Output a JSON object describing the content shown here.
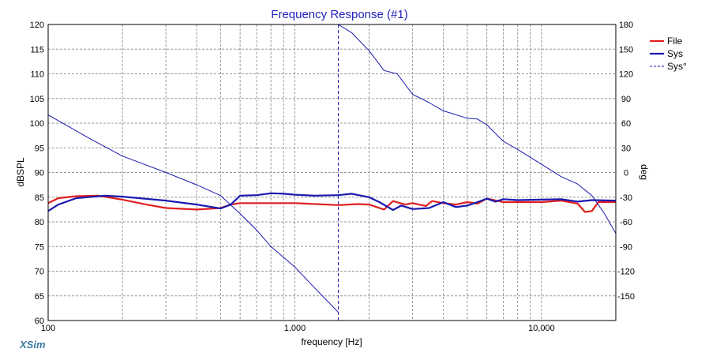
{
  "chart_data": {
    "type": "line",
    "title": "Frequency Response (#1)",
    "xlabel": "frequency [Hz]",
    "ylabel_left": "dBSPL",
    "ylabel_right": "deg",
    "x_scale": "log",
    "xlim": [
      100,
      20000
    ],
    "ylim_left": [
      60,
      120
    ],
    "ylim_right": [
      -180,
      180
    ],
    "grid": true,
    "legend_position": "top-right",
    "x_tick_labels": [
      {
        "value": 100,
        "label": "100"
      },
      {
        "value": 1000,
        "label": "1,000"
      },
      {
        "value": 10000,
        "label": "10,000"
      }
    ],
    "y_left_ticks": [
      60,
      65,
      70,
      75,
      80,
      85,
      90,
      95,
      100,
      105,
      110,
      115,
      120
    ],
    "y_right_ticks": [
      180,
      150,
      120,
      90,
      60,
      30,
      0,
      -30,
      -60,
      -90,
      -120,
      -150
    ],
    "series": [
      {
        "name": "File",
        "axis": "left",
        "color": "#e02020",
        "style": "solid",
        "points": [
          [
            100,
            83.8
          ],
          [
            110,
            84.8
          ],
          [
            130,
            85.2
          ],
          [
            160,
            85.3
          ],
          [
            200,
            84.5
          ],
          [
            250,
            83.5
          ],
          [
            300,
            82.8
          ],
          [
            400,
            82.5
          ],
          [
            500,
            82.8
          ],
          [
            550,
            83.5
          ],
          [
            600,
            83.8
          ],
          [
            1000,
            83.8
          ],
          [
            1500,
            83.4
          ],
          [
            1800,
            83.6
          ],
          [
            2000,
            83.5
          ],
          [
            2300,
            82.5
          ],
          [
            2500,
            84.2
          ],
          [
            2800,
            83.5
          ],
          [
            3000,
            83.8
          ],
          [
            3400,
            83.2
          ],
          [
            3600,
            84.2
          ],
          [
            4000,
            83.8
          ],
          [
            4500,
            83.5
          ],
          [
            5000,
            84
          ],
          [
            5500,
            83.7
          ],
          [
            6000,
            84.7
          ],
          [
            7000,
            84
          ],
          [
            10000,
            84
          ],
          [
            12000,
            84.3
          ],
          [
            14000,
            83.7
          ],
          [
            15000,
            82
          ],
          [
            16000,
            82.2
          ],
          [
            17000,
            84
          ],
          [
            20000,
            84
          ]
        ]
      },
      {
        "name": "Sys",
        "axis": "left",
        "color": "#1a1ab0",
        "style": "solid",
        "points": [
          [
            100,
            82.2
          ],
          [
            110,
            83.5
          ],
          [
            130,
            84.8
          ],
          [
            170,
            85.3
          ],
          [
            200,
            85.1
          ],
          [
            300,
            84.3
          ],
          [
            400,
            83.5
          ],
          [
            500,
            82.7
          ],
          [
            550,
            83.5
          ],
          [
            600,
            85.3
          ],
          [
            700,
            85.4
          ],
          [
            800,
            85.8
          ],
          [
            900,
            85.7
          ],
          [
            1000,
            85.5
          ],
          [
            1200,
            85.3
          ],
          [
            1500,
            85.4
          ],
          [
            1700,
            85.7
          ],
          [
            2000,
            85
          ],
          [
            2200,
            84
          ],
          [
            2500,
            82.4
          ],
          [
            2700,
            83.3
          ],
          [
            3000,
            82.6
          ],
          [
            3500,
            82.8
          ],
          [
            4000,
            84
          ],
          [
            4500,
            83
          ],
          [
            5000,
            83.3
          ],
          [
            5500,
            84
          ],
          [
            6000,
            84.7
          ],
          [
            6500,
            84.1
          ],
          [
            7000,
            84.6
          ],
          [
            8000,
            84.4
          ],
          [
            10000,
            84.5
          ],
          [
            12000,
            84.6
          ],
          [
            14000,
            84.1
          ],
          [
            16000,
            84.4
          ],
          [
            20000,
            84.3
          ]
        ]
      },
      {
        "name": "Sys°",
        "axis": "right",
        "color": "#1a1ab0",
        "style": "dashed",
        "segments": [
          [
            [
              100,
              70
            ],
            [
              150,
              40
            ],
            [
              200,
              20
            ],
            [
              300,
              0
            ],
            [
              400,
              -15
            ],
            [
              500,
              -28
            ],
            [
              600,
              -50
            ],
            [
              700,
              -70
            ],
            [
              800,
              -90
            ],
            [
              1000,
              -115
            ],
            [
              1200,
              -140
            ],
            [
              1500,
              -170
            ]
          ],
          [
            [
              1500,
              180
            ],
            [
              1700,
              170
            ],
            [
              2000,
              148
            ],
            [
              2300,
              124
            ],
            [
              2600,
              120
            ],
            [
              3000,
              95
            ],
            [
              3500,
              85
            ],
            [
              4000,
              75
            ],
            [
              5000,
              66
            ],
            [
              5500,
              65
            ],
            [
              6000,
              58
            ],
            [
              7000,
              38
            ],
            [
              8000,
              28
            ],
            [
              10000,
              10
            ],
            [
              12000,
              -5
            ],
            [
              14000,
              -14
            ],
            [
              16000,
              -28
            ],
            [
              18000,
              -50
            ],
            [
              20000,
              -74
            ]
          ]
        ],
        "vertical_marker_x": 1500
      }
    ],
    "legend": [
      "File",
      "Sys",
      "Sys°"
    ]
  },
  "branding": {
    "logo_text": "XSim"
  },
  "colors": {
    "plot_border": "#000000",
    "grid": "#999999",
    "title": "#2222bb"
  }
}
